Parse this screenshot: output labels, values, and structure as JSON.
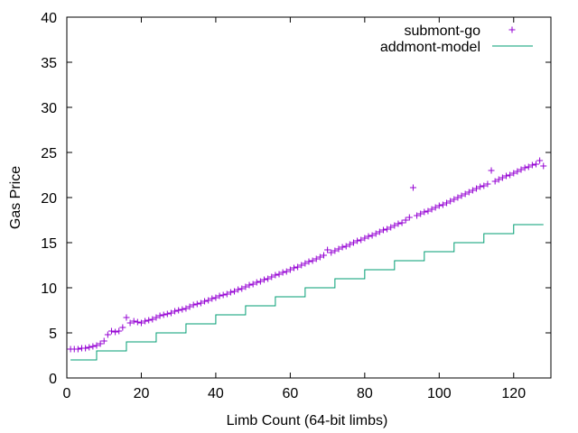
{
  "chart_data": {
    "type": "scatter",
    "xlabel": "Limb Count (64-bit limbs)",
    "ylabel": "Gas Price",
    "xlim": [
      0,
      130
    ],
    "ylim": [
      0,
      40
    ],
    "xticks": [
      "0",
      "20",
      "40",
      "60",
      "80",
      "100",
      "120"
    ],
    "yticks": [
      "0",
      "5",
      "10",
      "15",
      "20",
      "25",
      "30",
      "35",
      "40"
    ],
    "grid": false,
    "legend_position": "top-right",
    "series": [
      {
        "name": "submont-go",
        "kind": "points",
        "marker": "+",
        "color": "#9400d3",
        "x": [
          1,
          2,
          3,
          4,
          5,
          6,
          7,
          8,
          9,
          10,
          11,
          12,
          13,
          14,
          15,
          16,
          17,
          18,
          19,
          20,
          21,
          22,
          23,
          24,
          25,
          26,
          27,
          28,
          29,
          30,
          31,
          32,
          33,
          34,
          35,
          36,
          37,
          38,
          39,
          40,
          41,
          42,
          43,
          44,
          45,
          46,
          47,
          48,
          49,
          50,
          51,
          52,
          53,
          54,
          55,
          56,
          57,
          58,
          59,
          60,
          61,
          62,
          63,
          64,
          65,
          66,
          67,
          68,
          69,
          70,
          71,
          72,
          73,
          74,
          75,
          76,
          77,
          78,
          79,
          80,
          81,
          82,
          83,
          84,
          85,
          86,
          87,
          88,
          89,
          90,
          91,
          92,
          93,
          94,
          95,
          96,
          97,
          98,
          99,
          100,
          101,
          102,
          103,
          104,
          105,
          106,
          107,
          108,
          109,
          110,
          111,
          112,
          113,
          114,
          115,
          116,
          117,
          118,
          119,
          120,
          121,
          122,
          123,
          124,
          125,
          126,
          127,
          128
        ],
        "y": [
          3.2,
          3.2,
          3.2,
          3.3,
          3.3,
          3.4,
          3.5,
          3.6,
          3.8,
          4.1,
          4.8,
          5.2,
          5.1,
          5.2,
          5.6,
          6.7,
          6.1,
          6.3,
          6.2,
          6.1,
          6.3,
          6.4,
          6.5,
          6.7,
          6.9,
          7.0,
          7.1,
          7.2,
          7.4,
          7.5,
          7.6,
          7.7,
          7.9,
          8.1,
          8.2,
          8.3,
          8.5,
          8.6,
          8.8,
          8.9,
          9.1,
          9.2,
          9.3,
          9.5,
          9.6,
          9.8,
          9.9,
          10.1,
          10.3,
          10.4,
          10.6,
          10.7,
          10.9,
          11.0,
          11.2,
          11.4,
          11.5,
          11.7,
          11.8,
          12.0,
          12.2,
          12.3,
          12.5,
          12.7,
          12.9,
          13.0,
          13.2,
          13.4,
          13.6,
          14.2,
          13.9,
          14.1,
          14.3,
          14.5,
          14.6,
          14.8,
          15.0,
          15.2,
          15.3,
          15.5,
          15.7,
          15.8,
          16.0,
          16.2,
          16.4,
          16.5,
          16.7,
          16.9,
          17.1,
          17.2,
          17.5,
          17.8,
          21.1,
          18.0,
          18.2,
          18.4,
          18.5,
          18.7,
          18.9,
          19.1,
          19.2,
          19.4,
          19.6,
          19.8,
          20.0,
          20.2,
          20.4,
          20.6,
          20.8,
          21.0,
          21.2,
          21.3,
          21.5,
          23.0,
          21.8,
          22.0,
          22.2,
          22.4,
          22.5,
          22.7,
          22.9,
          23.1,
          23.3,
          23.4,
          23.6,
          23.7,
          24.1,
          23.5
        ]
      },
      {
        "name": "addmont-model",
        "kind": "step",
        "color": "#009e73",
        "steps": [
          {
            "x0": 1,
            "x1": 8,
            "y": 2
          },
          {
            "x0": 8,
            "x1": 16,
            "y": 3
          },
          {
            "x0": 16,
            "x1": 24,
            "y": 4
          },
          {
            "x0": 24,
            "x1": 32,
            "y": 5
          },
          {
            "x0": 32,
            "x1": 40,
            "y": 6
          },
          {
            "x0": 40,
            "x1": 48,
            "y": 7
          },
          {
            "x0": 48,
            "x1": 56,
            "y": 8
          },
          {
            "x0": 56,
            "x1": 64,
            "y": 9
          },
          {
            "x0": 64,
            "x1": 72,
            "y": 10
          },
          {
            "x0": 72,
            "x1": 80,
            "y": 11
          },
          {
            "x0": 80,
            "x1": 88,
            "y": 12
          },
          {
            "x0": 88,
            "x1": 96,
            "y": 13
          },
          {
            "x0": 96,
            "x1": 104,
            "y": 14
          },
          {
            "x0": 104,
            "x1": 112,
            "y": 15
          },
          {
            "x0": 112,
            "x1": 120,
            "y": 16
          },
          {
            "x0": 120,
            "x1": 128,
            "y": 17
          }
        ]
      }
    ]
  }
}
